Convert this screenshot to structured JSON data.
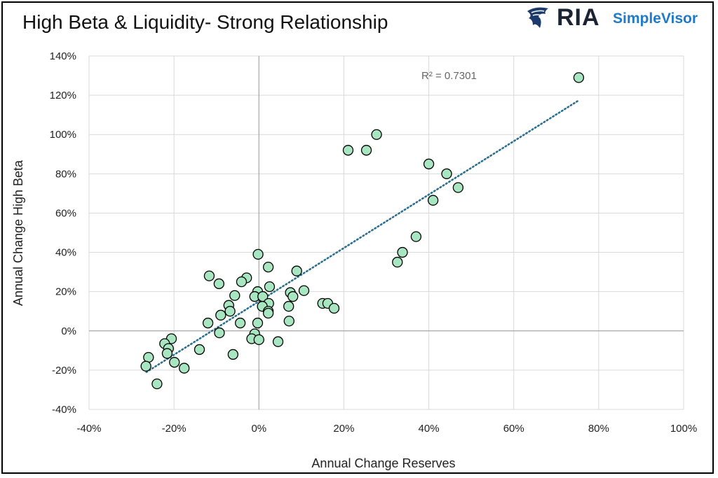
{
  "header": {
    "title": "High Beta & Liquidity- Strong Relationship",
    "logo_primary": "RIA",
    "logo_secondary": "SimpleVisor"
  },
  "chart_data": {
    "type": "scatter",
    "title": "High Beta & Liquidity- Strong Relationship",
    "xlabel": "Annual Change Reserves",
    "ylabel": "Annual Change High Beta",
    "xlim": [
      -40,
      100
    ],
    "ylim": [
      -40,
      140
    ],
    "x_ticks": [
      -40,
      -20,
      0,
      20,
      40,
      60,
      80,
      100
    ],
    "y_ticks": [
      -40,
      -20,
      0,
      20,
      40,
      60,
      80,
      100,
      120,
      140
    ],
    "x_tick_labels": [
      "-40%",
      "-20%",
      "0%",
      "20%",
      "40%",
      "60%",
      "80%",
      "100%"
    ],
    "y_tick_labels": [
      "-40%",
      "-20%",
      "0%",
      "20%",
      "40%",
      "60%",
      "80%",
      "100%",
      "120%",
      "140%"
    ],
    "grid": true,
    "point_color": "#a8e6c1",
    "point_edge_color": "#000000",
    "trendline": {
      "color": "#2a6f8e",
      "style": "dotted",
      "x": [
        -26.5,
        75
      ],
      "y": [
        -21,
        117
      ],
      "r2_label": "R² = 0.7301"
    },
    "points": [
      {
        "x": 75.3,
        "y": 129
      },
      {
        "x": 27.7,
        "y": 100
      },
      {
        "x": 21,
        "y": 92
      },
      {
        "x": 25.3,
        "y": 92
      },
      {
        "x": 40,
        "y": 85
      },
      {
        "x": 44.2,
        "y": 80
      },
      {
        "x": 46.9,
        "y": 73
      },
      {
        "x": 41,
        "y": 66.5
      },
      {
        "x": 37,
        "y": 48
      },
      {
        "x": 33.8,
        "y": 40
      },
      {
        "x": 32.6,
        "y": 35
      },
      {
        "x": -0.2,
        "y": 39
      },
      {
        "x": 2.2,
        "y": 32.5
      },
      {
        "x": 8.9,
        "y": 30.5
      },
      {
        "x": -11.7,
        "y": 28
      },
      {
        "x": -9.4,
        "y": 24
      },
      {
        "x": -2.9,
        "y": 27
      },
      {
        "x": -4.1,
        "y": 25
      },
      {
        "x": 2.5,
        "y": 22.5
      },
      {
        "x": 10.6,
        "y": 20.5
      },
      {
        "x": -0.3,
        "y": 20
      },
      {
        "x": 7.4,
        "y": 19.5
      },
      {
        "x": -5.7,
        "y": 18
      },
      {
        "x": -1,
        "y": 17.5
      },
      {
        "x": 0.9,
        "y": 17.5
      },
      {
        "x": 8,
        "y": 17.5
      },
      {
        "x": 15,
        "y": 14
      },
      {
        "x": 16.2,
        "y": 14
      },
      {
        "x": 2.3,
        "y": 14
      },
      {
        "x": -7.1,
        "y": 13
      },
      {
        "x": 0.8,
        "y": 12.5
      },
      {
        "x": 7,
        "y": 12.5
      },
      {
        "x": 17.7,
        "y": 11.5
      },
      {
        "x": -6.8,
        "y": 10
      },
      {
        "x": 2.2,
        "y": 10
      },
      {
        "x": 2.2,
        "y": 9
      },
      {
        "x": -9,
        "y": 8
      },
      {
        "x": -12,
        "y": 4
      },
      {
        "x": -4.4,
        "y": 4
      },
      {
        "x": -0.3,
        "y": 4
      },
      {
        "x": 7.1,
        "y": 5
      },
      {
        "x": -9.3,
        "y": -1
      },
      {
        "x": -1,
        "y": -1.5
      },
      {
        "x": -1.7,
        "y": -4
      },
      {
        "x": 0,
        "y": -4.5
      },
      {
        "x": 4.5,
        "y": -5.5
      },
      {
        "x": -20.6,
        "y": -4
      },
      {
        "x": -22.2,
        "y": -6.5
      },
      {
        "x": -21.3,
        "y": -9
      },
      {
        "x": -21.6,
        "y": -11.5
      },
      {
        "x": -14,
        "y": -9.5
      },
      {
        "x": -6.1,
        "y": -12
      },
      {
        "x": -26,
        "y": -13.5
      },
      {
        "x": -19.9,
        "y": -16
      },
      {
        "x": -26.6,
        "y": -18
      },
      {
        "x": -17.6,
        "y": -19
      },
      {
        "x": -24,
        "y": -27
      }
    ]
  }
}
